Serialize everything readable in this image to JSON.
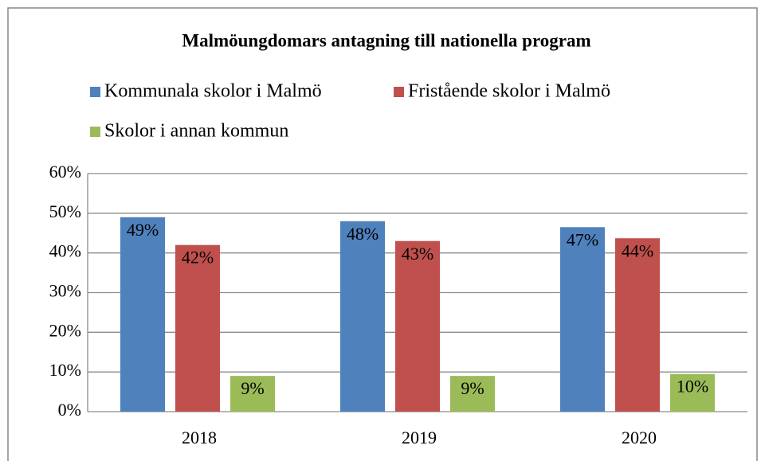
{
  "chart_data": {
    "type": "bar",
    "title": "Malmöungdomars antagning till nationella program",
    "categories": [
      "2018",
      "2019",
      "2020"
    ],
    "series": [
      {
        "name": "Kommunala skolor i Malmö",
        "color": "#4f81bd",
        "values": [
          49,
          48,
          46.5
        ],
        "value_labels": [
          "49%",
          "48%",
          "47%"
        ]
      },
      {
        "name": "Fristående skolor i Malmö",
        "color": "#c0504d",
        "values": [
          42,
          43,
          43.7
        ],
        "value_labels": [
          "42%",
          "43%",
          "44%"
        ]
      },
      {
        "name": "Skolor i annan kommun",
        "color": "#9bbb59",
        "values": [
          9,
          9,
          9.5
        ],
        "value_labels": [
          "9%",
          "9%",
          "10%"
        ]
      }
    ],
    "ylim": [
      0,
      60
    ],
    "yticks": [
      {
        "value": 0,
        "label": "0%"
      },
      {
        "value": 10,
        "label": "10%"
      },
      {
        "value": 20,
        "label": "20%"
      },
      {
        "value": 30,
        "label": "30%"
      },
      {
        "value": 40,
        "label": "40%"
      },
      {
        "value": 50,
        "label": "50%"
      },
      {
        "value": 60,
        "label": "60%"
      }
    ],
    "grid": true,
    "legend": "top"
  }
}
